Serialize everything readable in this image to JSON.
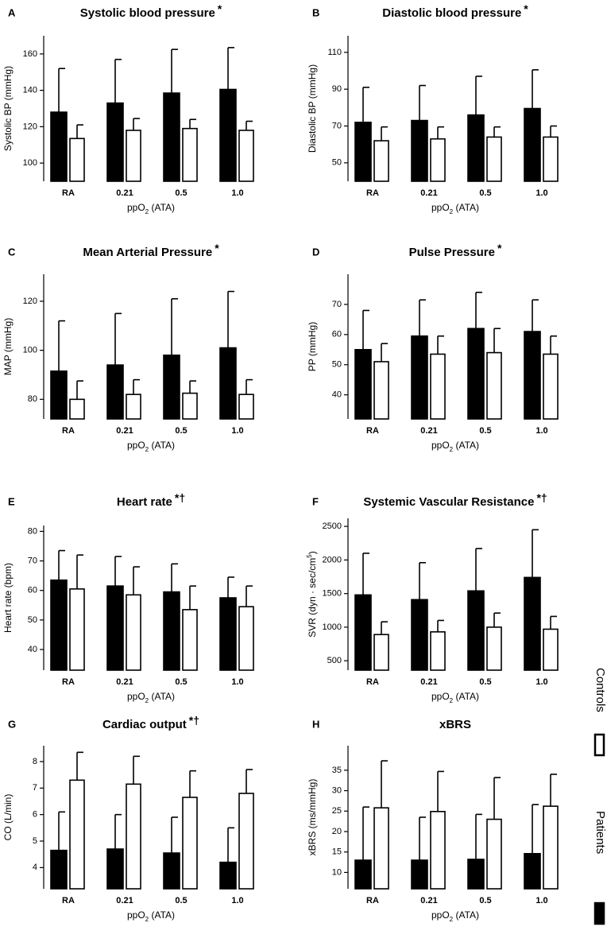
{
  "legend": [
    {
      "name": "Patients",
      "color": "#000000"
    },
    {
      "name": "Controls",
      "color": "#ffffff"
    }
  ],
  "chart_data": [
    {
      "type": "bar",
      "panel": "A",
      "title": "Systolic blood pressure",
      "annotation": "*",
      "categories": [
        "RA",
        "0.21",
        "0.5",
        "1.0"
      ],
      "series": [
        {
          "color": "#000000",
          "values": [
            128,
            133,
            138.5,
            140.5
          ],
          "errors": [
            24,
            24,
            24,
            23
          ]
        },
        {
          "color": "#ffffff",
          "values": [
            113.5,
            118,
            119,
            118
          ],
          "errors": [
            7.5,
            6.5,
            5,
            5
          ]
        }
      ],
      "xlabel": [
        "ppO",
        "2",
        " (ATA)"
      ],
      "ylabel": "Systolic BP (mmHg)",
      "ylim": [
        90,
        170
      ],
      "yticks": [
        100,
        120,
        140,
        160
      ]
    },
    {
      "type": "bar",
      "panel": "B",
      "title": "Diastolic blood pressure",
      "annotation": "*",
      "categories": [
        "RA",
        "0.21",
        "0.5",
        "1.0"
      ],
      "series": [
        {
          "color": "#000000",
          "values": [
            72,
            73,
            76,
            79.5
          ],
          "errors": [
            19,
            19,
            21,
            21
          ]
        },
        {
          "color": "#ffffff",
          "values": [
            62,
            63,
            64,
            64
          ],
          "errors": [
            7.5,
            6.5,
            5.5,
            6
          ]
        }
      ],
      "xlabel": [
        "ppO",
        "2",
        " (ATA)"
      ],
      "ylabel": "Diastolic BP (mmHg)",
      "ylim": [
        40,
        119
      ],
      "yticks": [
        50,
        70,
        90,
        110
      ]
    },
    {
      "type": "bar",
      "panel": "C",
      "title": "Mean Arterial Pressure",
      "annotation": "*",
      "categories": [
        "RA",
        "0.21",
        "0.5",
        "1.0"
      ],
      "series": [
        {
          "color": "#000000",
          "values": [
            91.5,
            94,
            98,
            101
          ],
          "errors": [
            20.5,
            21,
            23,
            23
          ]
        },
        {
          "color": "#ffffff",
          "values": [
            80,
            82,
            82.5,
            82
          ],
          "errors": [
            7.5,
            6,
            5,
            6
          ]
        }
      ],
      "xlabel": [
        "ppO",
        "2",
        " (ATA)"
      ],
      "ylabel": "MAP (mmHg)",
      "ylim": [
        72,
        131
      ],
      "yticks": [
        80,
        100,
        120
      ]
    },
    {
      "type": "bar",
      "panel": "D",
      "title": "Pulse Pressure",
      "annotation": "*",
      "categories": [
        "RA",
        "0.21",
        "0.5",
        "1.0"
      ],
      "series": [
        {
          "color": "#000000",
          "values": [
            55,
            59.5,
            62,
            61
          ],
          "errors": [
            13,
            12,
            12,
            10.5
          ]
        },
        {
          "color": "#ffffff",
          "values": [
            51,
            53.5,
            54,
            53.5
          ],
          "errors": [
            6,
            6,
            8,
            6
          ]
        }
      ],
      "xlabel": [
        "ppO",
        "2",
        " (ATA)"
      ],
      "ylabel": "PP (mmHg)",
      "ylim": [
        32,
        80
      ],
      "yticks": [
        40,
        50,
        60,
        70
      ]
    },
    {
      "type": "bar",
      "panel": "E",
      "title": "Heart rate",
      "annotation": "*†",
      "categories": [
        "RA",
        "0.21",
        "0.5",
        "1.0"
      ],
      "series": [
        {
          "color": "#000000",
          "values": [
            63.5,
            61.5,
            59.5,
            57.5
          ],
          "errors": [
            10,
            10,
            9.5,
            7
          ]
        },
        {
          "color": "#ffffff",
          "values": [
            60.5,
            58.5,
            53.5,
            54.5
          ],
          "errors": [
            11.5,
            9.5,
            8,
            7
          ]
        }
      ],
      "xlabel": [
        "ppO",
        "2",
        " (ATA)"
      ],
      "ylabel": "Heart rate (bpm)",
      "ylim": [
        33,
        82
      ],
      "yticks": [
        40,
        50,
        60,
        70,
        80
      ]
    },
    {
      "type": "bar",
      "panel": "F",
      "title": "Systemic Vascular Resistance",
      "annotation": "*†",
      "categories": [
        "RA",
        "0.21",
        "0.5",
        "1.0"
      ],
      "series": [
        {
          "color": "#000000",
          "values": [
            1480,
            1410,
            1540,
            1740
          ],
          "errors": [
            620,
            550,
            630,
            710
          ]
        },
        {
          "color": "#ffffff",
          "values": [
            890,
            930,
            1000,
            970
          ],
          "errors": [
            190,
            170,
            210,
            190
          ]
        }
      ],
      "xlabel": [
        "ppO",
        "2",
        " (ATA)"
      ],
      "ylabel": [
        "SVR (dyn · sec/cm",
        "5",
        ")"
      ],
      "ylim": [
        360,
        2620
      ],
      "yticks": [
        500,
        1000,
        1500,
        2000,
        2500
      ]
    },
    {
      "type": "bar",
      "panel": "G",
      "title": "Cardiac output",
      "annotation": "*†",
      "categories": [
        "RA",
        "0.21",
        "0.5",
        "1.0"
      ],
      "series": [
        {
          "color": "#000000",
          "values": [
            4.65,
            4.7,
            4.55,
            4.2
          ],
          "errors": [
            1.45,
            1.3,
            1.35,
            1.3
          ]
        },
        {
          "color": "#ffffff",
          "values": [
            7.3,
            7.15,
            6.65,
            6.8
          ],
          "errors": [
            1.05,
            1.05,
            1.0,
            0.9
          ]
        }
      ],
      "xlabel": [
        "ppO",
        "2",
        " (ATA)"
      ],
      "ylabel": "CO (L/min)",
      "ylim": [
        3.2,
        8.6
      ],
      "yticks": [
        4,
        5,
        6,
        7,
        8
      ]
    },
    {
      "type": "bar",
      "panel": "H",
      "title": "xBRS",
      "annotation": "",
      "categories": [
        "RA",
        "0.21",
        "0.5",
        "1.0"
      ],
      "series": [
        {
          "color": "#000000",
          "values": [
            13,
            13,
            13.2,
            14.6
          ],
          "errors": [
            13,
            10.5,
            11,
            12
          ]
        },
        {
          "color": "#ffffff",
          "values": [
            25.8,
            24.9,
            23,
            26.2
          ],
          "errors": [
            11.5,
            9.8,
            10.2,
            7.8
          ]
        }
      ],
      "xlabel": [
        "ppO",
        "2",
        " (ATA)"
      ],
      "ylabel": "xBRS (ms/mmHg)",
      "ylim": [
        6,
        41
      ],
      "yticks": [
        10,
        15,
        20,
        25,
        30,
        35
      ]
    }
  ]
}
